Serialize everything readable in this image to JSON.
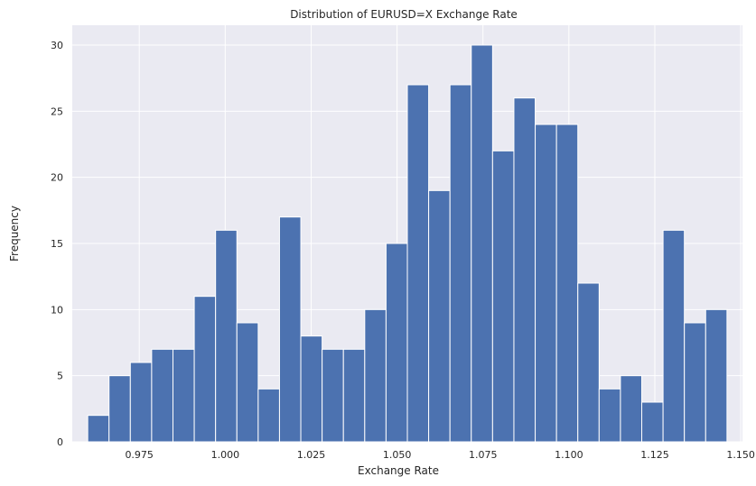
{
  "chart_data": {
    "type": "bar",
    "title": "Distribution of EURUSD=X Exchange Rate",
    "xlabel": "Exchange Rate",
    "ylabel": "Frequency",
    "xlim": [
      0.9555,
      1.1505
    ],
    "ylim": [
      0,
      31.5
    ],
    "x_ticks": [
      0.975,
      1.0,
      1.025,
      1.05,
      1.075,
      1.1,
      1.125,
      1.15
    ],
    "x_tick_labels": [
      "0.975",
      "1.000",
      "1.025",
      "1.050",
      "1.075",
      "1.100",
      "1.125",
      "1.150"
    ],
    "y_ticks": [
      0,
      5,
      10,
      15,
      20,
      25,
      30
    ],
    "y_tick_labels": [
      "0",
      "5",
      "10",
      "15",
      "20",
      "25",
      "30"
    ],
    "bin_start": 0.96,
    "bin_width": 0.0062,
    "values": [
      2,
      5,
      6,
      7,
      7,
      11,
      16,
      9,
      4,
      17,
      8,
      7,
      7,
      10,
      15,
      27,
      19,
      27,
      30,
      22,
      26,
      24,
      24,
      12,
      4,
      5,
      3,
      16,
      9,
      10
    ],
    "grid": true,
    "colors": {
      "bar": "#4c72b0",
      "background": "#eaeaf2",
      "grid": "#ffffff"
    }
  }
}
